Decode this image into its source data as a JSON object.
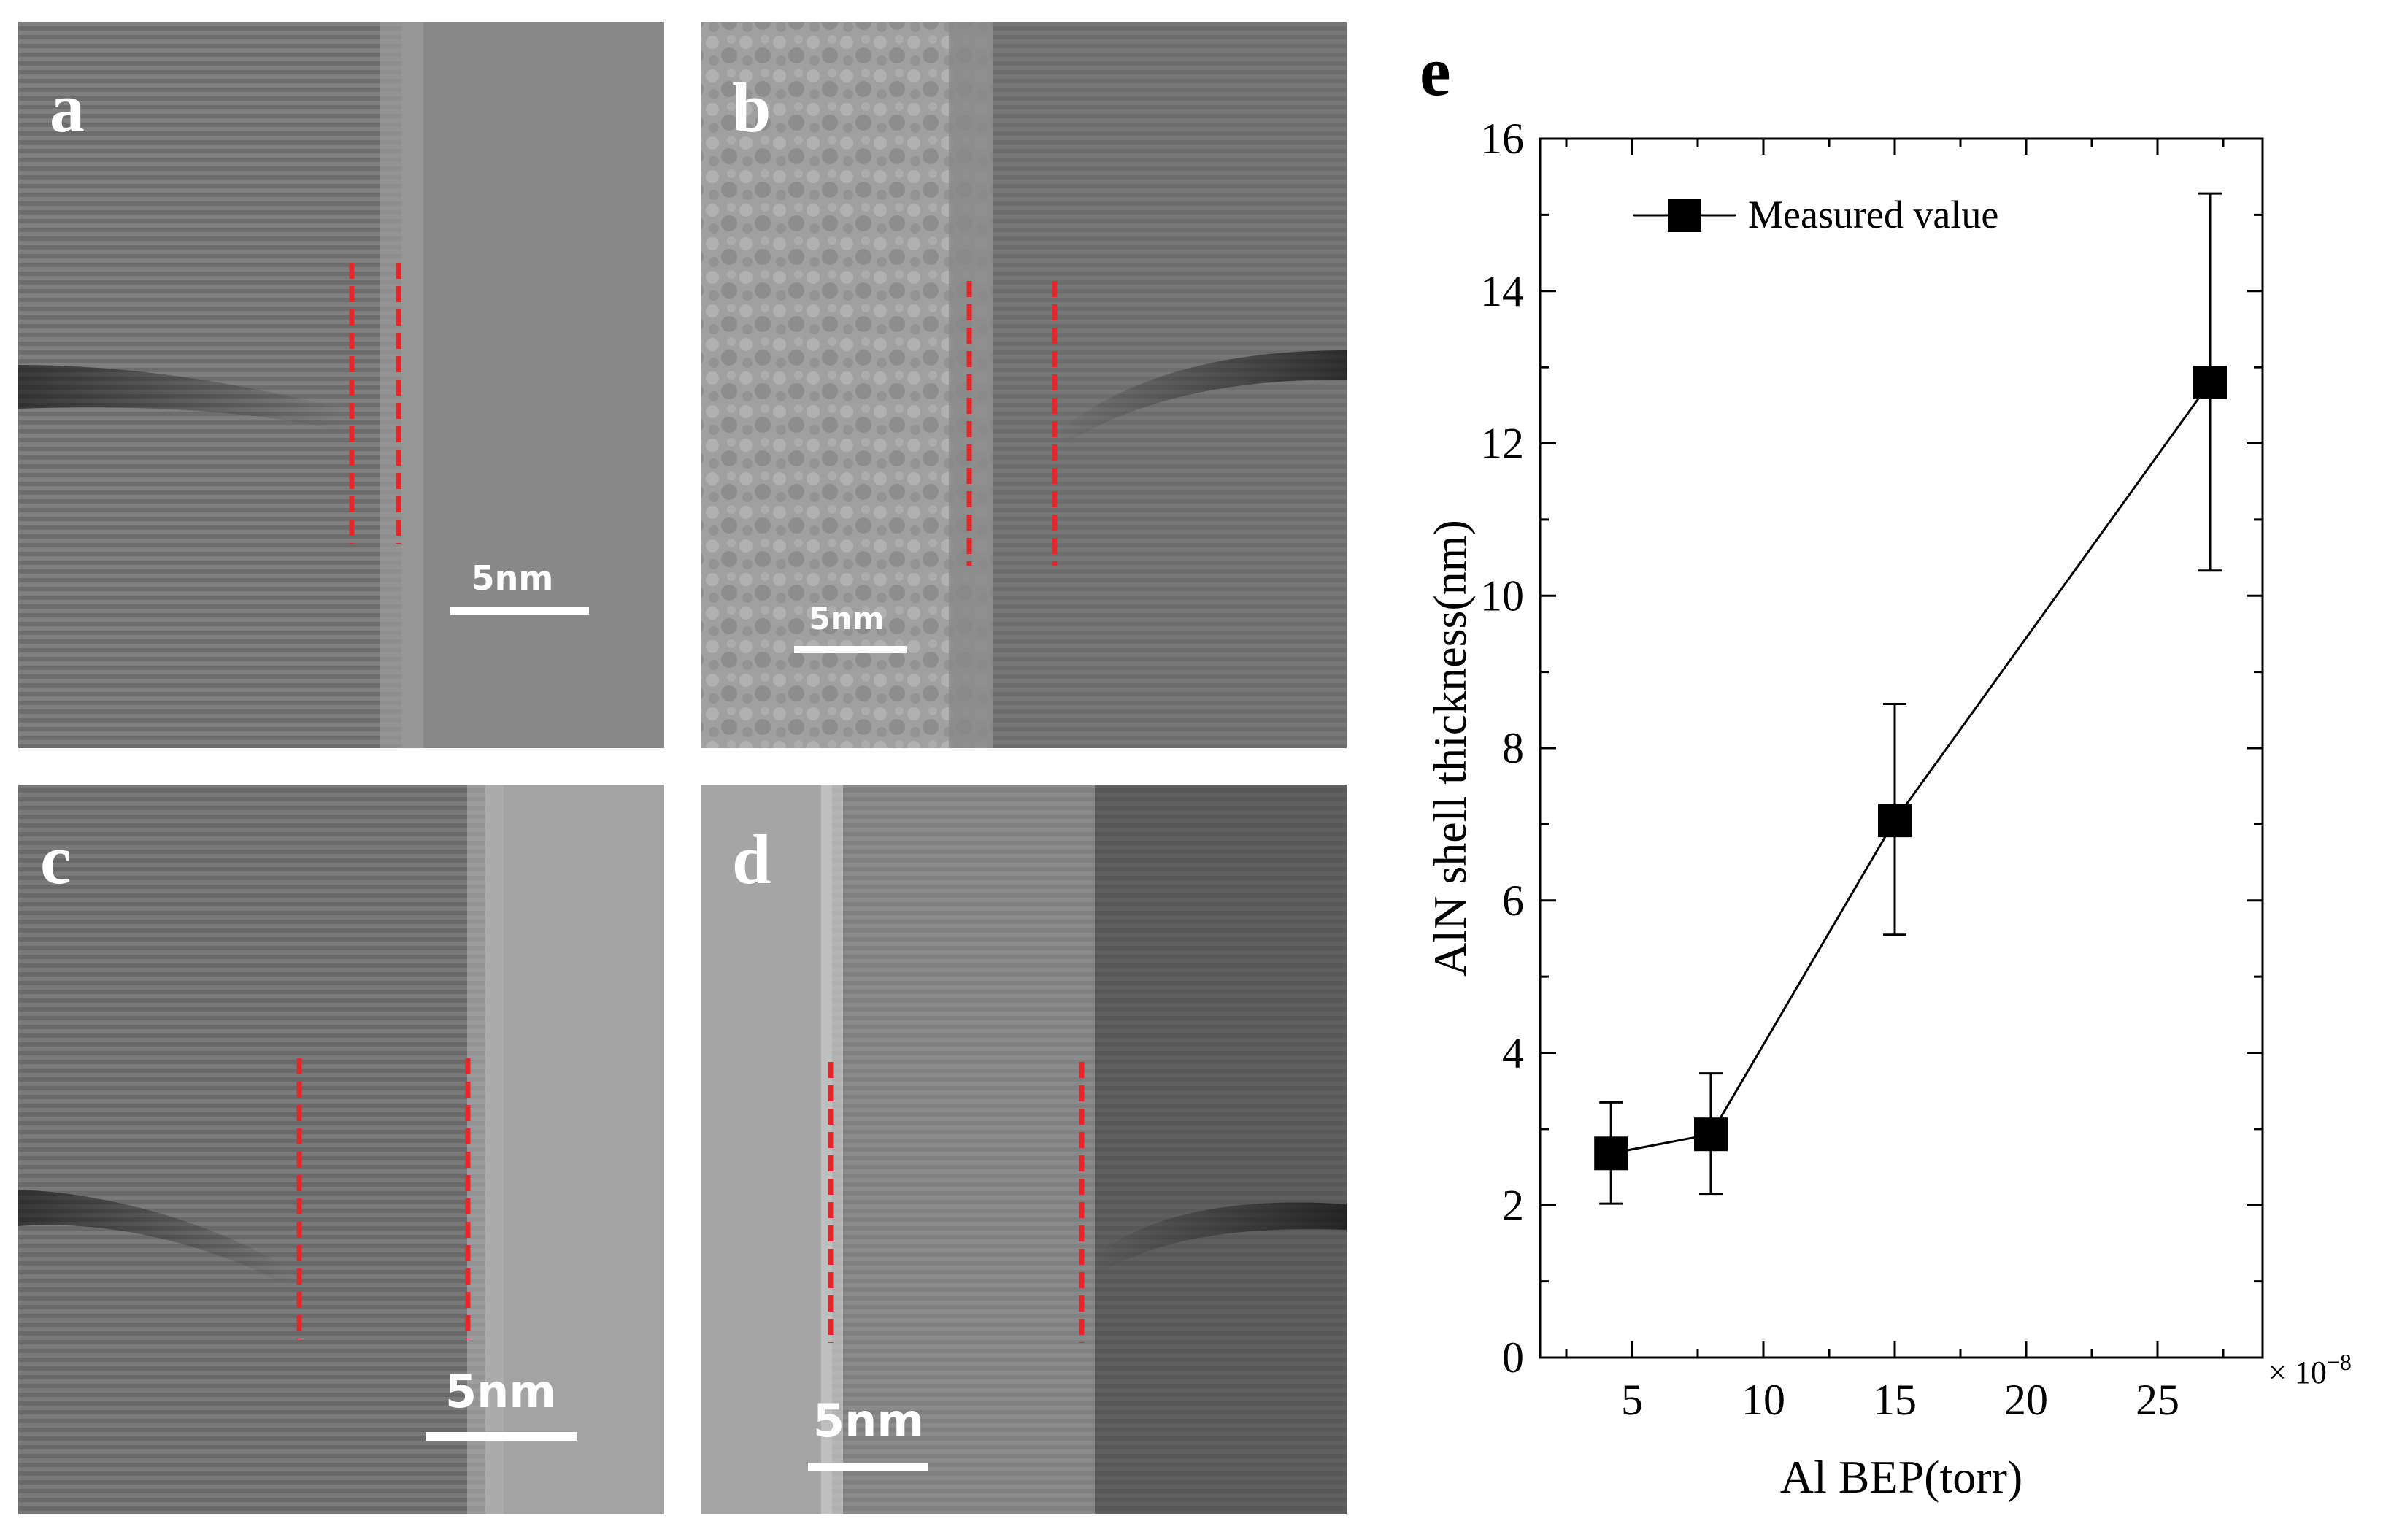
{
  "panels": [
    {
      "id": "a",
      "label": "a",
      "scale_bar": "5nm",
      "tone": "#858585",
      "interface_tone": "#9a9a9a"
    },
    {
      "id": "b",
      "label": "b",
      "scale_bar": "5nm",
      "tone": "#9d9d9d",
      "interface_tone": "#777777"
    },
    {
      "id": "c",
      "label": "c",
      "scale_bar": "5nm",
      "tone": "#7a7a7a",
      "interface_tone": "#a3a3a3"
    },
    {
      "id": "d",
      "label": "d",
      "scale_bar": "5nm",
      "tone": "#666666",
      "interface_tone": "#a8a8a8"
    }
  ],
  "marker_color": "#e8262a",
  "chart_data": {
    "type": "line",
    "panel_label": "e",
    "xlabel": "Al BEP(torr)",
    "ylabel": "AlN shell thickness(nm)",
    "x_multiplier": "× 10",
    "x_multiplier_exp": "−8",
    "xlim": [
      1.5,
      29
    ],
    "ylim": [
      0,
      16
    ],
    "x_ticks": [
      5,
      10,
      15,
      20,
      25
    ],
    "y_ticks": [
      0,
      2,
      4,
      6,
      8,
      10,
      12,
      14,
      16
    ],
    "legend": "top-left",
    "series": [
      {
        "name": "Measured value",
        "marker": "square",
        "color": "#000000",
        "x": [
          4.2,
          8.0,
          15.0,
          27.0
        ],
        "y": [
          2.68,
          2.93,
          7.05,
          12.8
        ],
        "err_low": [
          2.02,
          2.15,
          5.55,
          10.33
        ],
        "err_high": [
          3.35,
          3.73,
          8.58,
          15.28
        ]
      }
    ]
  }
}
